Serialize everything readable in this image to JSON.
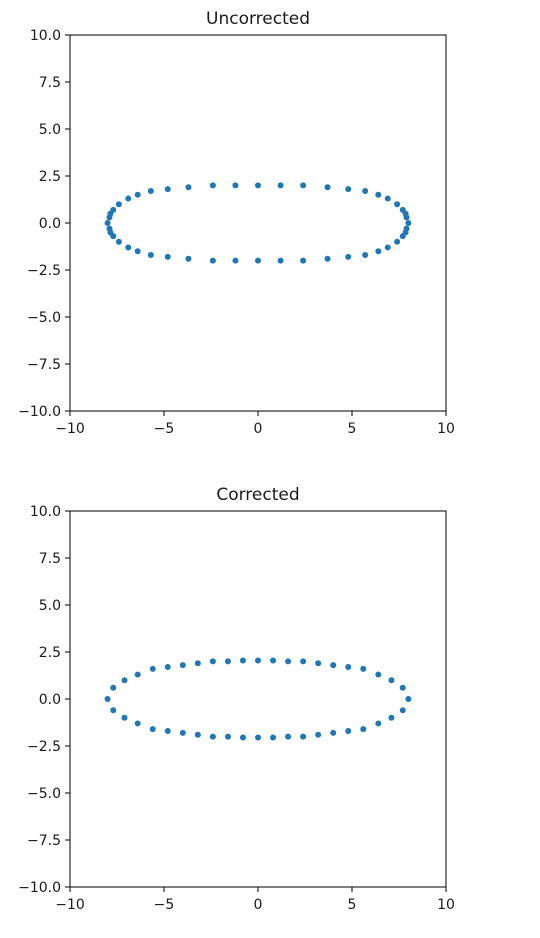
{
  "chart_data": [
    {
      "type": "scatter",
      "title": "Uncorrected",
      "xlabel": "",
      "ylabel": "",
      "xlim": [
        -10,
        10
      ],
      "ylim": [
        -10,
        10
      ],
      "xticks": [
        "−10",
        "−5",
        "0",
        "5",
        "10"
      ],
      "yticks": [
        "10.0",
        "7.5",
        "5.0",
        "2.5",
        "0.0",
        "−2.5",
        "−5.0",
        "−7.5",
        "−10.0"
      ],
      "grid": false,
      "marker_color": "#1f77b4",
      "points": {
        "x": [
          8.0,
          7.9,
          7.85,
          7.7,
          7.4,
          6.9,
          6.4,
          5.7,
          4.8,
          3.7,
          2.4,
          1.2,
          0.0,
          -1.2,
          -2.4,
          -3.7,
          -4.8,
          -5.7,
          -6.4,
          -6.9,
          -7.4,
          -7.7,
          -7.85,
          -7.9,
          -8.0,
          -7.9,
          -7.85,
          -7.7,
          -7.4,
          -6.9,
          -6.4,
          -5.7,
          -4.8,
          -3.7,
          -2.4,
          -1.2,
          0.0,
          1.2,
          2.4,
          3.7,
          4.8,
          5.7,
          6.4,
          6.9,
          7.4,
          7.7,
          7.85,
          7.9
        ],
        "y": [
          0.0,
          0.3,
          0.5,
          0.7,
          1.0,
          1.3,
          1.5,
          1.7,
          1.8,
          1.9,
          2.0,
          2.0,
          2.0,
          2.0,
          2.0,
          1.9,
          1.8,
          1.7,
          1.5,
          1.3,
          1.0,
          0.7,
          0.5,
          0.3,
          0.0,
          -0.3,
          -0.5,
          -0.7,
          -1.0,
          -1.3,
          -1.5,
          -1.7,
          -1.8,
          -1.9,
          -2.0,
          -2.0,
          -2.0,
          -2.0,
          -2.0,
          -1.9,
          -1.8,
          -1.7,
          -1.5,
          -1.3,
          -1.0,
          -0.7,
          -0.5,
          -0.3
        ]
      }
    },
    {
      "type": "scatter",
      "title": "Corrected",
      "xlabel": "",
      "ylabel": "",
      "xlim": [
        -10,
        10
      ],
      "ylim": [
        -10,
        10
      ],
      "xticks": [
        "−10",
        "−5",
        "0",
        "5",
        "10"
      ],
      "yticks": [
        "10.0",
        "7.5",
        "5.0",
        "2.5",
        "0.0",
        "−2.5",
        "−5.0",
        "−7.5",
        "−10.0"
      ],
      "grid": false,
      "marker_color": "#1f77b4",
      "points": {
        "x": [
          8.0,
          7.7,
          7.1,
          6.4,
          5.6,
          4.8,
          4.0,
          3.2,
          2.4,
          1.6,
          0.8,
          0.0,
          -0.8,
          -1.6,
          -2.4,
          -3.2,
          -4.0,
          -4.8,
          -5.6,
          -6.4,
          -7.1,
          -7.7,
          -8.0,
          -7.7,
          -7.1,
          -6.4,
          -5.6,
          -4.8,
          -4.0,
          -3.2,
          -2.4,
          -1.6,
          -0.8,
          0.0,
          0.8,
          1.6,
          2.4,
          3.2,
          4.0,
          4.8,
          5.6,
          6.4,
          7.1,
          7.7
        ],
        "y": [
          0.0,
          0.6,
          1.0,
          1.3,
          1.6,
          1.7,
          1.8,
          1.9,
          2.0,
          2.0,
          2.05,
          2.05,
          2.05,
          2.0,
          2.0,
          1.9,
          1.8,
          1.7,
          1.6,
          1.3,
          1.0,
          0.6,
          0.0,
          -0.6,
          -1.0,
          -1.3,
          -1.6,
          -1.7,
          -1.8,
          -1.9,
          -2.0,
          -2.0,
          -2.05,
          -2.05,
          -2.05,
          -2.0,
          -2.0,
          -1.9,
          -1.8,
          -1.7,
          -1.6,
          -1.3,
          -1.0,
          -0.6
        ]
      }
    }
  ]
}
